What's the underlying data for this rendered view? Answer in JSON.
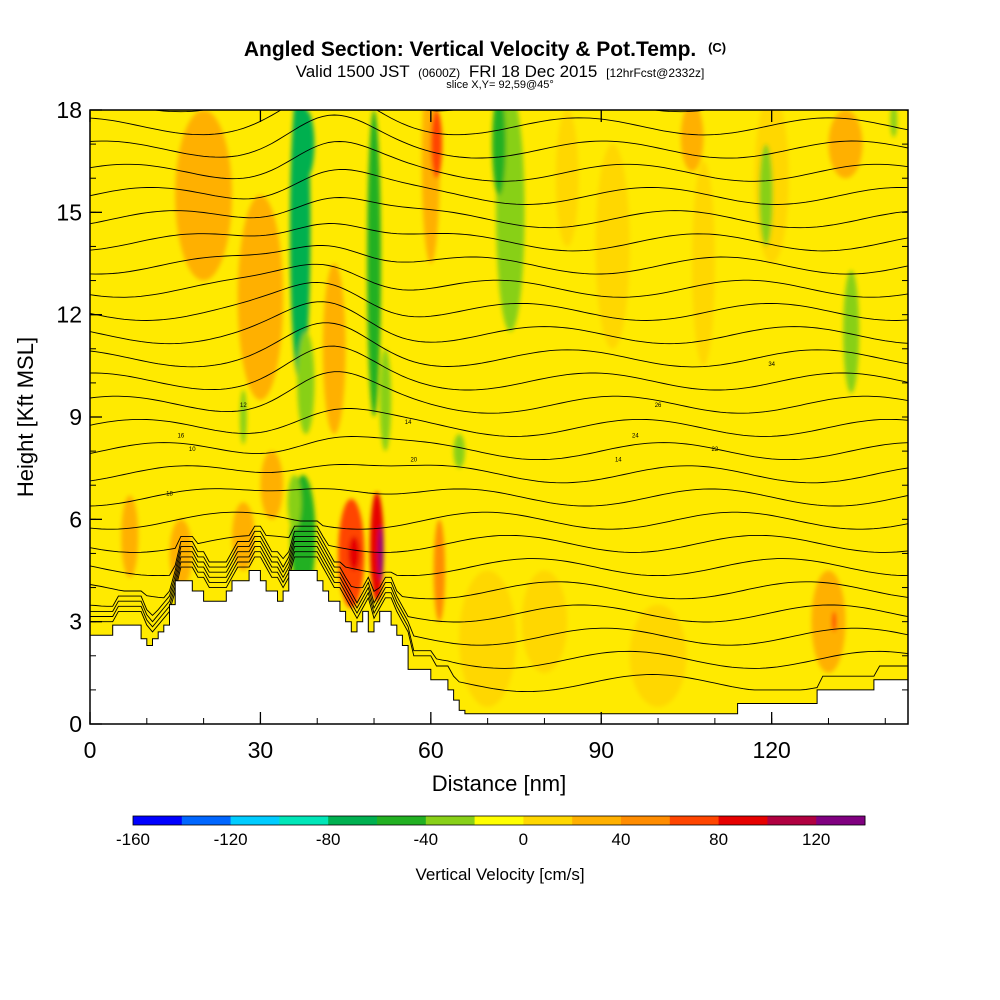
{
  "header": {
    "title": "Angled Section: Vertical Velocity & Pot.Temp.",
    "title_suffix": "(C)",
    "subtitle_a": "Valid 1500 JST",
    "subtitle_b": "(0600Z)",
    "subtitle_c": "FRI 18 Dec 2015",
    "subtitle_d": "[12hrFcst@2332z]",
    "slice": "slice X,Y= 92,59@45°"
  },
  "chart_data": {
    "type": "heatmap",
    "xlabel": "Distance [nm]",
    "ylabel": "Height [Kft MSL]",
    "xlim": [
      0,
      144
    ],
    "ylim": [
      0,
      18
    ],
    "x_ticks": [
      0,
      30,
      60,
      90,
      120
    ],
    "y_ticks": [
      0,
      3,
      6,
      9,
      12,
      15,
      18
    ],
    "colorbar": {
      "label": "Vertical Velocity [cm/s]",
      "ticks": [
        -160,
        -120,
        -80,
        -40,
        0,
        40,
        80,
        120
      ],
      "bounds": [
        -160,
        140
      ],
      "colors": [
        "#0000ff",
        "#0066ff",
        "#00ccff",
        "#00e6b8",
        "#00b050",
        "#22b022",
        "#88d018",
        "#ffff00",
        "#ffd700",
        "#ffb000",
        "#ff8c00",
        "#ff4500",
        "#e60000",
        "#b00040",
        "#800080"
      ]
    },
    "background_color": "#ffea00",
    "terrain": [
      [
        0,
        2.6
      ],
      [
        4,
        2.6
      ],
      [
        4,
        2.9
      ],
      [
        9,
        2.9
      ],
      [
        9,
        2.5
      ],
      [
        10,
        2.5
      ],
      [
        10,
        2.3
      ],
      [
        11,
        2.3
      ],
      [
        11,
        2.5
      ],
      [
        12,
        2.5
      ],
      [
        12,
        2.7
      ],
      [
        13,
        2.7
      ],
      [
        13,
        2.9
      ],
      [
        14,
        2.9
      ],
      [
        14,
        3.5
      ],
      [
        15,
        3.5
      ],
      [
        15,
        4.2
      ],
      [
        18,
        4.2
      ],
      [
        18,
        3.9
      ],
      [
        20,
        3.9
      ],
      [
        20,
        3.6
      ],
      [
        24,
        3.6
      ],
      [
        24,
        3.9
      ],
      [
        25,
        3.9
      ],
      [
        25,
        4.2
      ],
      [
        28,
        4.2
      ],
      [
        28,
        4.5
      ],
      [
        30,
        4.5
      ],
      [
        30,
        4.2
      ],
      [
        31,
        4.2
      ],
      [
        31,
        3.9
      ],
      [
        33,
        3.9
      ],
      [
        33,
        3.6
      ],
      [
        34,
        3.6
      ],
      [
        34,
        3.9
      ],
      [
        35,
        3.9
      ],
      [
        35,
        4.5
      ],
      [
        40,
        4.5
      ],
      [
        40,
        4.2
      ],
      [
        41,
        4.2
      ],
      [
        41,
        3.9
      ],
      [
        42,
        3.9
      ],
      [
        42,
        3.6
      ],
      [
        44,
        3.6
      ],
      [
        44,
        3.3
      ],
      [
        45,
        3.3
      ],
      [
        45,
        3.0
      ],
      [
        46,
        3.0
      ],
      [
        46,
        2.7
      ],
      [
        47,
        2.7
      ],
      [
        47,
        3.0
      ],
      [
        48,
        3.0
      ],
      [
        48,
        3.3
      ],
      [
        49,
        3.3
      ],
      [
        49,
        2.7
      ],
      [
        50,
        2.7
      ],
      [
        50,
        3.0
      ],
      [
        51,
        3.0
      ],
      [
        51,
        3.3
      ],
      [
        53,
        3.3
      ],
      [
        53,
        2.9
      ],
      [
        54,
        2.9
      ],
      [
        54,
        2.6
      ],
      [
        55,
        2.6
      ],
      [
        55,
        2.3
      ],
      [
        56,
        2.3
      ],
      [
        56,
        1.6
      ],
      [
        60,
        1.6
      ],
      [
        60,
        1.3
      ],
      [
        63,
        1.3
      ],
      [
        63,
        1.0
      ],
      [
        64,
        1.0
      ],
      [
        64,
        0.7
      ],
      [
        65,
        0.7
      ],
      [
        65,
        0.4
      ],
      [
        66,
        0.4
      ],
      [
        66,
        0.3
      ],
      [
        114,
        0.3
      ],
      [
        114,
        0.6
      ],
      [
        128,
        0.6
      ],
      [
        128,
        1.0
      ],
      [
        138,
        1.0
      ],
      [
        138,
        1.3
      ],
      [
        144,
        1.3
      ]
    ],
    "velocity_features": [
      {
        "x": 7,
        "y": 5.5,
        "rx": 1.5,
        "ry": 1.2,
        "w": 20
      },
      {
        "x": 20,
        "y": 15.5,
        "rx": 5,
        "ry": 2.5,
        "w": 20
      },
      {
        "x": 30,
        "y": 12.5,
        "rx": 4,
        "ry": 3,
        "w": 20
      },
      {
        "x": 16,
        "y": 5,
        "rx": 2,
        "ry": 1,
        "w": 30
      },
      {
        "x": 27,
        "y": 5.5,
        "rx": 2,
        "ry": 1,
        "w": 25
      },
      {
        "x": 32,
        "y": 7,
        "rx": 2,
        "ry": 1,
        "w": 20
      },
      {
        "x": 37,
        "y": 14.5,
        "rx": 1.8,
        "ry": 4.5,
        "w": -70
      },
      {
        "x": 38,
        "y": 17,
        "rx": 1.5,
        "ry": 1,
        "w": -80
      },
      {
        "x": 38,
        "y": 10,
        "rx": 1.5,
        "ry": 1.5,
        "w": -40
      },
      {
        "x": 37.5,
        "y": 5.5,
        "rx": 2.2,
        "ry": 1.8,
        "w": -50
      },
      {
        "x": 36,
        "y": 6.5,
        "rx": 1.2,
        "ry": 0.8,
        "w": -40
      },
      {
        "x": 50,
        "y": 13.5,
        "rx": 1.2,
        "ry": 4.5,
        "w": -55
      },
      {
        "x": 52,
        "y": 9.5,
        "rx": 1,
        "ry": 1.5,
        "w": -40
      },
      {
        "x": 27,
        "y": 9,
        "rx": 0.6,
        "ry": 0.8,
        "w": -25
      },
      {
        "x": 43,
        "y": 11,
        "rx": 2,
        "ry": 2.5,
        "w": 30
      },
      {
        "x": 46,
        "y": 5,
        "rx": 2.3,
        "ry": 1.6,
        "w": 60
      },
      {
        "x": 46.5,
        "y": 5,
        "rx": 1,
        "ry": 0.5,
        "w": 85
      },
      {
        "x": 50.5,
        "y": 5.2,
        "rx": 1.2,
        "ry": 1.6,
        "w": 80
      },
      {
        "x": 51.2,
        "y": 5,
        "rx": 0.4,
        "ry": 0.8,
        "w": 130
      },
      {
        "x": 60,
        "y": 16.5,
        "rx": 1.6,
        "ry": 3,
        "w": 35
      },
      {
        "x": 61,
        "y": 17,
        "rx": 1,
        "ry": 1,
        "w": 60
      },
      {
        "x": 61.5,
        "y": 4.5,
        "rx": 1,
        "ry": 1.5,
        "w": 45
      },
      {
        "x": 65,
        "y": 8,
        "rx": 1,
        "ry": 0.5,
        "w": -30
      },
      {
        "x": 74,
        "y": 15,
        "rx": 2.5,
        "ry": 3.5,
        "w": -35
      },
      {
        "x": 72,
        "y": 17,
        "rx": 1.2,
        "ry": 1.5,
        "w": -55
      },
      {
        "x": 84,
        "y": 16,
        "rx": 2,
        "ry": 2,
        "w": 15
      },
      {
        "x": 92,
        "y": 14,
        "rx": 3,
        "ry": 3,
        "w": 12
      },
      {
        "x": 108,
        "y": 13.5,
        "rx": 2,
        "ry": 3,
        "w": 15
      },
      {
        "x": 120,
        "y": 16,
        "rx": 3,
        "ry": 2.5,
        "w": 15
      },
      {
        "x": 106,
        "y": 17.2,
        "rx": 2,
        "ry": 1,
        "w": 20
      },
      {
        "x": 133,
        "y": 17,
        "rx": 3,
        "ry": 1,
        "w": 20
      },
      {
        "x": 119,
        "y": 15.5,
        "rx": 1.2,
        "ry": 1.5,
        "w": -30
      },
      {
        "x": 134,
        "y": 11.5,
        "rx": 1.4,
        "ry": 1.8,
        "w": -40
      },
      {
        "x": 141.5,
        "y": 17.7,
        "rx": 0.6,
        "ry": 0.5,
        "w": -35
      },
      {
        "x": 70,
        "y": 2.5,
        "rx": 5,
        "ry": 2,
        "w": 15
      },
      {
        "x": 80,
        "y": 3,
        "rx": 4,
        "ry": 1.5,
        "w": 15
      },
      {
        "x": 100,
        "y": 2,
        "rx": 5,
        "ry": 1.5,
        "w": 15
      },
      {
        "x": 130,
        "y": 3,
        "rx": 3,
        "ry": 1.5,
        "w": 20
      },
      {
        "x": 131,
        "y": 3,
        "rx": 0.4,
        "ry": 0.3,
        "w": 60
      }
    ],
    "contour_labels": [
      "18",
      "10",
      "16",
      "12",
      "14",
      "20",
      "14",
      "24",
      "26",
      "22",
      "34"
    ]
  }
}
